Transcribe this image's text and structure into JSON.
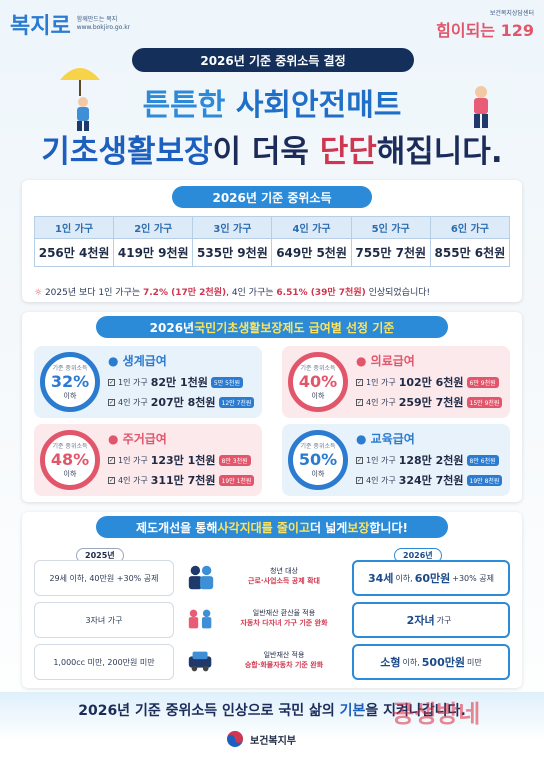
{
  "header": {
    "logo_left_mark": "복지로",
    "logo_left_sub1": "함께만드는 복지",
    "logo_left_sub2": "www.bokjiro.go.kr",
    "logo_right_sub": "보건복지상담센터",
    "logo_right_main": "힘이되는 129",
    "top_pill": "2026년 기준 중위소득 결정",
    "title1_a": "튼튼한 ",
    "title1_b": "사회안전매트",
    "title2_a": "기초생활보장",
    "title2_b": "이 더욱 ",
    "title2_c": "단단",
    "title2_d": "해집니다."
  },
  "income": {
    "title": "2026년 기준 중위소득",
    "headers": [
      "1인 가구",
      "2인 가구",
      "3인 가구",
      "4인 가구",
      "5인 가구",
      "6인 가구"
    ],
    "values": [
      "256만 4천원",
      "419만 9천원",
      "535만 9천원",
      "649만 5천원",
      "755만 7천원",
      "855만 6천원"
    ],
    "note_a": "2025년 보다 1인 가구는 ",
    "note_b": "7.2% (17만 2천원)",
    "note_c": ", 4인 가구는 ",
    "note_d": "6.51% (39만 7천원)",
    "note_e": " 인상되었습니다!"
  },
  "criteria": {
    "title_a": "2026년 ",
    "title_b": "국민기초생활보장제도 급여별 선정 기준",
    "items": [
      {
        "ring_label": "기준 중위소득",
        "pct": "32%",
        "below": "이하",
        "name": "생계급여",
        "l1_label": "1인 가구",
        "l1_val": "82만 1천원",
        "l1_tag": "5만 5천원",
        "l2_label": "4인 가구",
        "l2_val": "207만 8천원",
        "l2_tag": "12만 7천원",
        "color": "#2b7bd0"
      },
      {
        "ring_label": "기준 중위소득",
        "pct": "40%",
        "below": "이하",
        "name": "의료급여",
        "l1_label": "1인 가구",
        "l1_val": "102만 6천원",
        "l1_tag": "6만 9천원",
        "l2_label": "4인 가구",
        "l2_val": "259만 7천원",
        "l2_tag": "15만 9천원",
        "color": "#e2566c"
      },
      {
        "ring_label": "기준 중위소득",
        "pct": "48%",
        "below": "이하",
        "name": "주거급여",
        "l1_label": "1인 가구",
        "l1_val": "123만 1천원",
        "l1_tag": "8만 3천원",
        "l2_label": "4인 가구",
        "l2_val": "311만 7천원",
        "l2_tag": "19만 1천원",
        "color": "#e2566c"
      },
      {
        "ring_label": "기준 중위소득",
        "pct": "50%",
        "below": "이하",
        "name": "교육급여",
        "l1_label": "1인 가구",
        "l1_val": "128만 2천원",
        "l1_tag": "8만 6천원",
        "l2_label": "4인 가구",
        "l2_val": "324만 7천원",
        "l2_tag": "19만 8천원",
        "color": "#2b7bd0"
      }
    ]
  },
  "improve": {
    "title_a": "제도개선을 통해 ",
    "title_b": "사각지대를 줄이고",
    "title_c": " 더 넓게 ",
    "title_d": "보장",
    "title_e": "합니다!",
    "year_old": "2025년",
    "year_new": "2026년",
    "rows": [
      {
        "old": "29세 이하, 40만원 +30% 공제",
        "t1": "청년 대상",
        "t2": "근로·사업소득 공제 확대",
        "new_b": "34세",
        "new_rest": " 이하, ",
        "new_b2": "60만원",
        "new_rest2": "+30% 공제"
      },
      {
        "old": "3자녀 가구",
        "t1": "일반재산 환산율 적용",
        "t2": "자동차 다자녀 가구 기준 완화",
        "new_b": "2자녀",
        "new_rest": " 가구",
        "new_b2": "",
        "new_rest2": ""
      },
      {
        "old": "1,000cc 미만, 200만원 미만",
        "t1": "일반재산 적용",
        "t2": "승합·화물자동차 기준 완화",
        "new_b": "소형",
        "new_rest": " 이하, ",
        "new_b2": "500만원",
        "new_rest2": " 미만"
      }
    ]
  },
  "footer": {
    "slogan_a": "2026년 기준 중위소득 인상으로 국민 삶의 ",
    "slogan_b": "기본",
    "slogan_c": "을 지켜나갑니다.",
    "ministry": "보건복지부",
    "watermark": "공생방네"
  }
}
